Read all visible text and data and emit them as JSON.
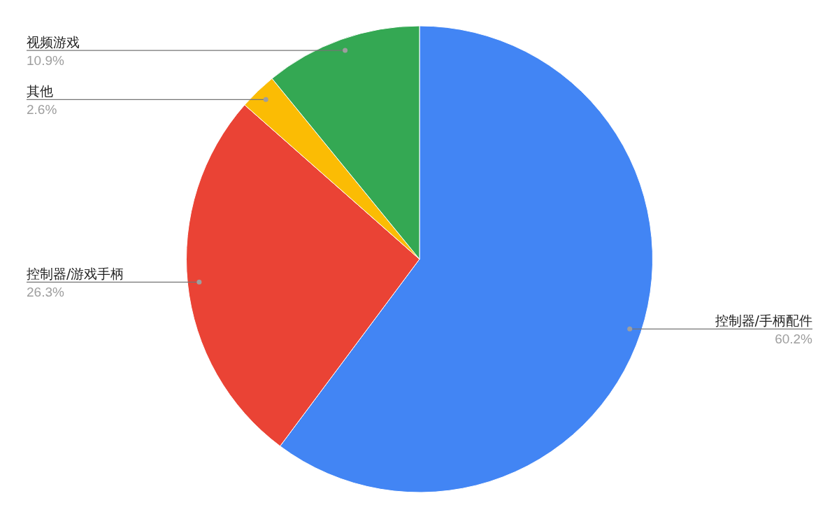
{
  "chart_data": {
    "type": "pie",
    "categories": [
      "控制器/手柄配件",
      "控制器/游戏手柄",
      "其他",
      "视频游戏"
    ],
    "values": [
      60.2,
      26.3,
      2.6,
      10.9
    ],
    "colors": [
      "#4285f4",
      "#ea4335",
      "#fbbc04",
      "#34a853"
    ],
    "value_labels": [
      "60.2%",
      "26.3%",
      "2.6%",
      "10.9%"
    ]
  }
}
